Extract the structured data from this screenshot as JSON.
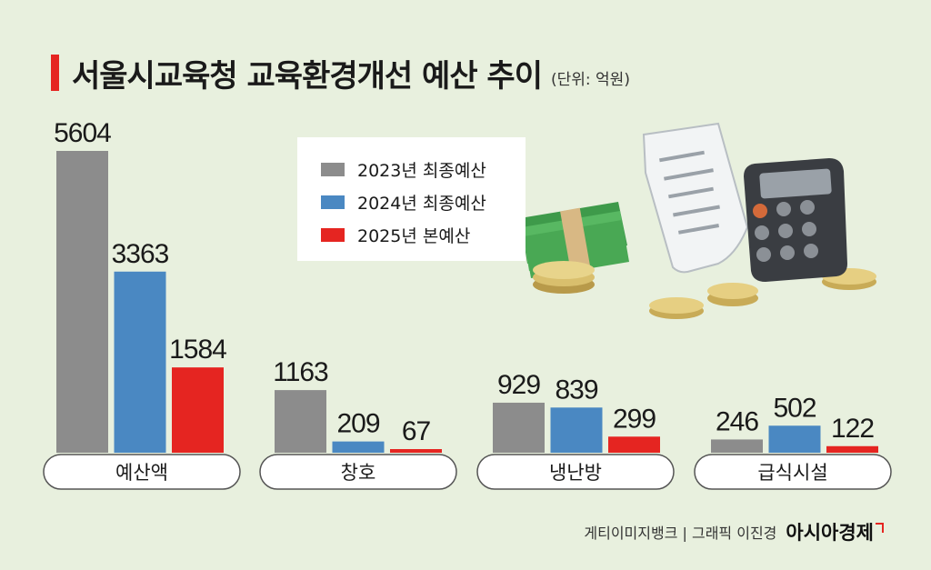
{
  "header": {
    "title": "서울시교육청 교육환경개선 예산 추이",
    "unit": "(단위: 억원)"
  },
  "credit": {
    "source": "게티이미지뱅크 | 그래픽 이진경",
    "brand": "아시아경제"
  },
  "colors": {
    "series_2023": "#8c8c8c",
    "series_2024": "#4a88c2",
    "series_2025": "#e52521",
    "accent": "#e52521"
  },
  "chart_data": {
    "type": "bar",
    "categories": [
      "예산액",
      "창호",
      "냉난방",
      "급식시설"
    ],
    "series": [
      {
        "name": "2023년 최종예산",
        "values": [
          5604,
          1163,
          929,
          246
        ]
      },
      {
        "name": "2024년 최종예산",
        "values": [
          3363,
          209,
          839,
          502
        ]
      },
      {
        "name": "2025년 본예산",
        "values": [
          1584,
          67,
          299,
          122
        ]
      }
    ],
    "title": "서울시교육청 교육환경개선 예산 추이",
    "unit": "(단위: 억원)",
    "legend_position": "top-center",
    "grid": false
  }
}
